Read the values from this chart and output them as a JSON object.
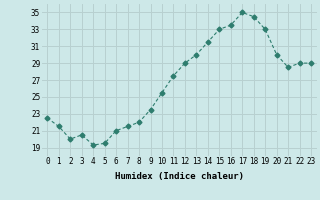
{
  "x": [
    0,
    1,
    2,
    3,
    4,
    5,
    6,
    7,
    8,
    9,
    10,
    11,
    12,
    13,
    14,
    15,
    16,
    17,
    18,
    19,
    20,
    21,
    22,
    23
  ],
  "y": [
    22.5,
    21.5,
    20.0,
    20.5,
    19.3,
    19.5,
    21.0,
    21.5,
    22.0,
    23.5,
    25.5,
    27.5,
    29.0,
    30.0,
    31.5,
    33.0,
    33.5,
    35.0,
    34.5,
    33.0,
    30.0,
    28.5,
    29.0,
    29.0
  ],
  "line_color": "#2e7d6e",
  "marker": "D",
  "marker_size": 2.5,
  "bg_color": "#cde8e8",
  "grid_color": "#b8d0d0",
  "xlabel": "Humidex (Indice chaleur)",
  "ylim": [
    18,
    36
  ],
  "xlim": [
    -0.5,
    23.5
  ],
  "yticks": [
    19,
    21,
    23,
    25,
    27,
    29,
    31,
    33,
    35
  ],
  "xticks": [
    0,
    1,
    2,
    3,
    4,
    5,
    6,
    7,
    8,
    9,
    10,
    11,
    12,
    13,
    14,
    15,
    16,
    17,
    18,
    19,
    20,
    21,
    22,
    23
  ],
  "tick_fontsize": 5.5,
  "xlabel_fontsize": 6.5
}
